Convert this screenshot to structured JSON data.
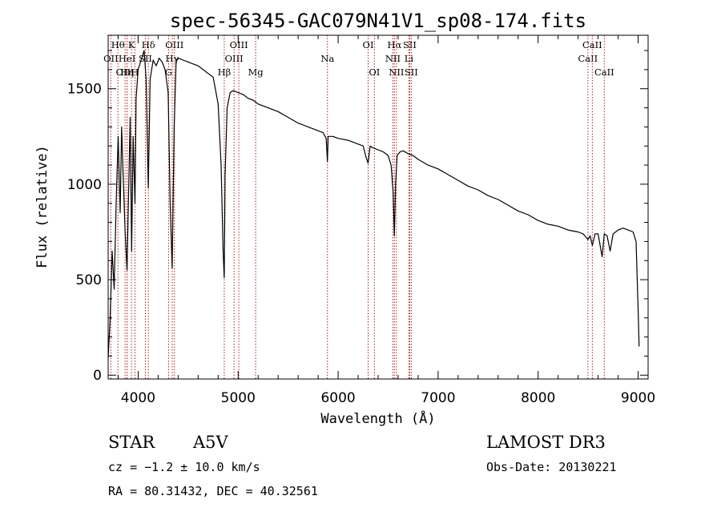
{
  "chart_data": {
    "type": "line",
    "title": "spec-56345-GAC079N41V1_sp08-174.fits",
    "xlabel": "Wavelength (Å)",
    "ylabel": "Flux (relative)",
    "xlim": [
      3700,
      9100
    ],
    "ylim": [
      -20,
      1780
    ],
    "x_ticks": [
      4000,
      5000,
      6000,
      7000,
      8000,
      9000
    ],
    "x_tick_labels": [
      "4000",
      "5000",
      "6000",
      "7000",
      "8000",
      "9000"
    ],
    "y_ticks": [
      0,
      500,
      1000,
      1500
    ],
    "y_tick_labels": [
      "0",
      "500",
      "1000",
      "1500"
    ],
    "grid": false,
    "line_color": "#000000",
    "marker_color": "#b22222",
    "spectrum": {
      "x": [
        3700,
        3720,
        3740,
        3760,
        3780,
        3800,
        3820,
        3835,
        3850,
        3870,
        3889,
        3900,
        3920,
        3935,
        3950,
        3968,
        3980,
        4000,
        4030,
        4060,
        4080,
        4101,
        4120,
        4150,
        4180,
        4210,
        4240,
        4270,
        4300,
        4320,
        4340,
        4360,
        4380,
        4400,
        4450,
        4500,
        4550,
        4600,
        4650,
        4700,
        4750,
        4800,
        4830,
        4850,
        4861,
        4870,
        4890,
        4920,
        4950,
        5000,
        5050,
        5100,
        5150,
        5200,
        5250,
        5300,
        5400,
        5500,
        5600,
        5700,
        5800,
        5850,
        5880,
        5893,
        5900,
        5950,
        6000,
        6100,
        6200,
        6250,
        6280,
        6300,
        6320,
        6350,
        6400,
        6450,
        6500,
        6530,
        6550,
        6563,
        6575,
        6590,
        6620,
        6650,
        6700,
        6750,
        6800,
        6900,
        7000,
        7100,
        7200,
        7300,
        7400,
        7500,
        7600,
        7700,
        7800,
        7900,
        8000,
        8100,
        8200,
        8300,
        8400,
        8450,
        8498,
        8520,
        8542,
        8570,
        8600,
        8640,
        8662,
        8690,
        8720,
        8750,
        8800,
        8850,
        8900,
        8950,
        8980,
        9000,
        9010
      ],
      "y": [
        90,
        300,
        650,
        450,
        900,
        1250,
        850,
        1300,
        1050,
        750,
        550,
        850,
        1350,
        650,
        1250,
        900,
        1450,
        1600,
        1650,
        1700,
        1550,
        980,
        1550,
        1650,
        1620,
        1660,
        1640,
        1600,
        1480,
        900,
        560,
        1300,
        1650,
        1660,
        1650,
        1640,
        1630,
        1620,
        1600,
        1580,
        1560,
        1420,
        1100,
        650,
        510,
        1050,
        1400,
        1480,
        1490,
        1480,
        1470,
        1450,
        1440,
        1420,
        1410,
        1400,
        1380,
        1350,
        1320,
        1300,
        1280,
        1270,
        1240,
        1120,
        1250,
        1250,
        1240,
        1230,
        1210,
        1200,
        1140,
        1110,
        1200,
        1190,
        1180,
        1170,
        1150,
        1100,
        960,
        730,
        1000,
        1150,
        1170,
        1175,
        1160,
        1150,
        1130,
        1100,
        1080,
        1050,
        1020,
        990,
        970,
        940,
        920,
        890,
        860,
        840,
        810,
        790,
        780,
        760,
        750,
        740,
        710,
        730,
        680,
        740,
        740,
        620,
        740,
        730,
        650,
        740,
        760,
        770,
        760,
        750,
        700,
        350,
        150
      ]
    },
    "line_markers": [
      {
        "name": "H-theta",
        "label": "Hθ",
        "x": 3798,
        "row": 0
      },
      {
        "name": "OII",
        "label": "OII",
        "x": 3727,
        "row": 1
      },
      {
        "name": "OIII-3869",
        "label": "OIII",
        "x": 3869,
        "row": 2
      },
      {
        "name": "H-eta",
        "label": "Hη",
        "x": 3889,
        "row": 2
      },
      {
        "name": "HeI",
        "label": "HeI",
        "x": 3889,
        "row": 1
      },
      {
        "name": "CaII-K",
        "label": "K",
        "x": 3934,
        "row": 0
      },
      {
        "name": "CaII-H",
        "label": "H",
        "x": 3968,
        "row": 2
      },
      {
        "name": "H-delta",
        "label": "Hδ",
        "x": 4102,
        "row": 0
      },
      {
        "name": "SII-4072",
        "label": "SII",
        "x": 4072,
        "row": 1
      },
      {
        "name": "G-band",
        "label": "G",
        "x": 4305,
        "row": 2
      },
      {
        "name": "OIII-4363",
        "label": "OIII",
        "x": 4363,
        "row": 0
      },
      {
        "name": "H-gamma",
        "label": "Hγ",
        "x": 4341,
        "row": 1
      },
      {
        "name": "H-beta",
        "label": "Hβ",
        "x": 4861,
        "row": 2
      },
      {
        "name": "OIII-4959",
        "label": "OIII",
        "x": 4959,
        "row": 1
      },
      {
        "name": "OIII-5007",
        "label": "OIII",
        "x": 5007,
        "row": 0
      },
      {
        "name": "Mg",
        "label": "Mg",
        "x": 5175,
        "row": 2
      },
      {
        "name": "Na",
        "label": "Na",
        "x": 5893,
        "row": 1
      },
      {
        "name": "OI-6300",
        "label": "OI",
        "x": 6300,
        "row": 0
      },
      {
        "name": "OI-6363",
        "label": "OI",
        "x": 6363,
        "row": 2
      },
      {
        "name": "H-alpha",
        "label": "Hα",
        "x": 6563,
        "row": 0
      },
      {
        "name": "NII-6548",
        "label": "NII",
        "x": 6548,
        "row": 1
      },
      {
        "name": "NII-6583",
        "label": "NII",
        "x": 6583,
        "row": 2
      },
      {
        "name": "SII-6716",
        "label": "SII",
        "x": 6716,
        "row": 0
      },
      {
        "name": "Li",
        "label": "Li",
        "x": 6708,
        "row": 1
      },
      {
        "name": "SII-6731",
        "label": "SII",
        "x": 6731,
        "row": 2
      },
      {
        "name": "CaII-8498",
        "label": "CaII",
        "x": 8498,
        "row": 1
      },
      {
        "name": "CaII-8542",
        "label": "CaII",
        "x": 8542,
        "row": 0
      },
      {
        "name": "CaII-8662",
        "label": "CaII",
        "x": 8662,
        "row": 2
      }
    ]
  },
  "info": {
    "object_class": "STAR",
    "subclass": "A5V",
    "survey": "LAMOST DR3",
    "cz": "cz = −1.2 ± 10.0 km/s",
    "obs_date": "Obs-Date: 20130221",
    "coords": "RA =  80.31432, DEC =  40.32561"
  }
}
